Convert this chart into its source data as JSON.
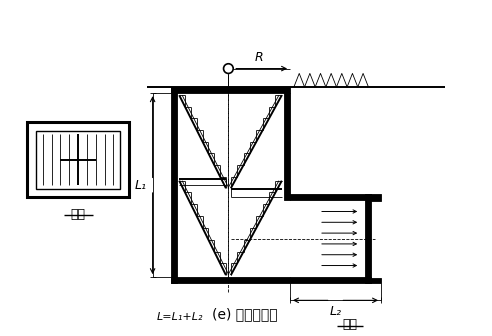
{
  "title": "(e) 楼梯出入口",
  "label_R": "R",
  "label_L1": "L₁",
  "label_L2": "L₂",
  "label_L": "L=L₁+L₂",
  "label_pingmian": "平面",
  "label_poumian": "剖面",
  "bg_color": "#ffffff",
  "line_color": "#000000",
  "figsize": [
    4.92,
    3.36
  ],
  "dpi": 100
}
